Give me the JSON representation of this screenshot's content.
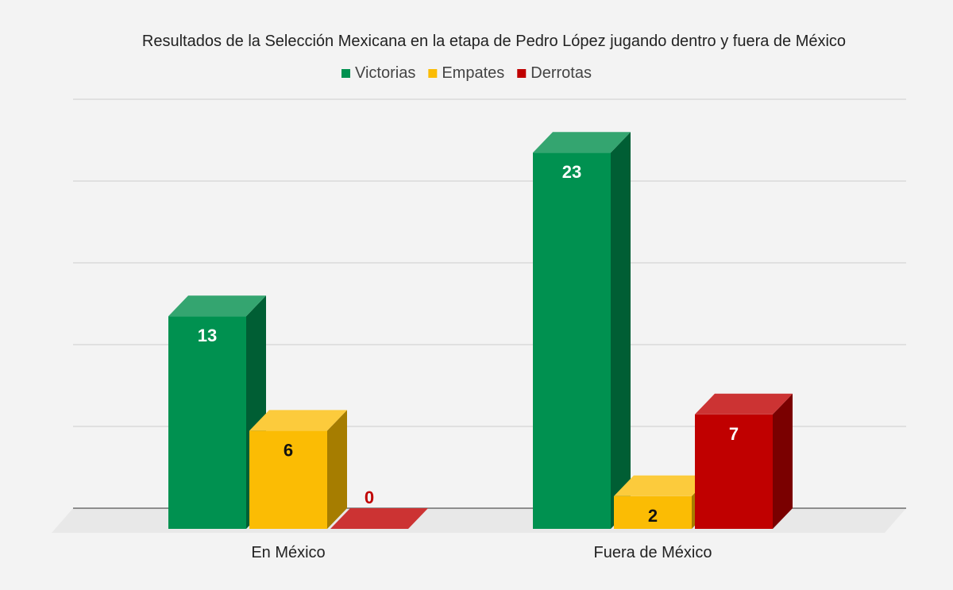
{
  "chart_data": {
    "type": "bar",
    "title": "Resultados de la Selección Mexicana en la etapa de Pedro López jugando dentro y fuera de México",
    "categories": [
      "En México",
      "Fuera de México"
    ],
    "series": [
      {
        "name": "Victorias",
        "values": [
          13,
          23
        ],
        "color": "#009150",
        "top_color": "#34a570",
        "side_color": "#005e34",
        "label_color": "#ffffff"
      },
      {
        "name": "Empates",
        "values": [
          6,
          2
        ],
        "color": "#fbbc04",
        "top_color": "#fccb3c",
        "side_color": "#a67d00",
        "label_color": "#111111"
      },
      {
        "name": "Derrotas",
        "values": [
          0,
          7
        ],
        "color": "#c00000",
        "top_color": "#cc3333",
        "side_color": "#7a0000",
        "label_color": "#ffffff",
        "zero_label_color": "#c00000"
      }
    ],
    "ylim": [
      0,
      25
    ],
    "grid": true,
    "legend_position": "top-center",
    "three_d": true,
    "background": "#f3f3f3",
    "gridline_color": "#cccccc",
    "axis_color": "#555555"
  }
}
